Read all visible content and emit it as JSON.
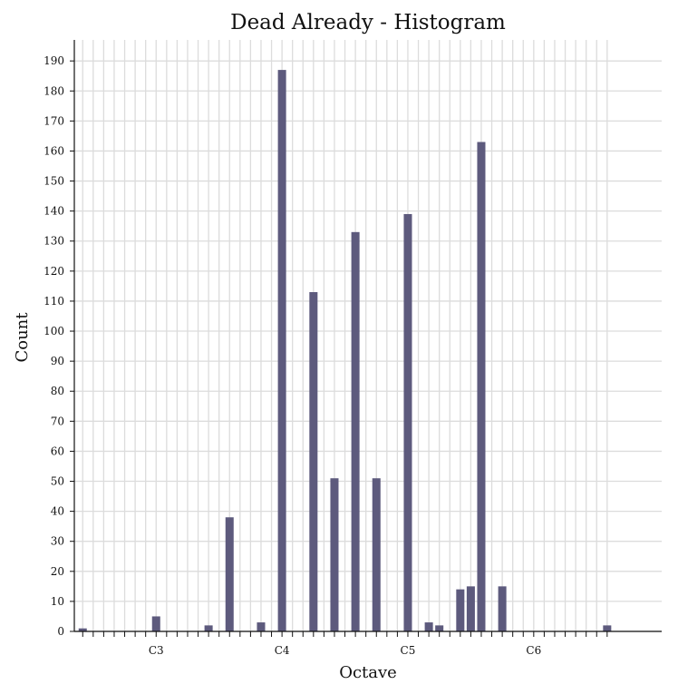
{
  "chart_data": {
    "type": "bar",
    "title": "Dead Already - Histogram",
    "xlabel": "Octave",
    "ylabel": "Count",
    "ylim": [
      0,
      197
    ],
    "yticks": [
      0,
      10,
      20,
      30,
      40,
      50,
      60,
      70,
      80,
      90,
      100,
      110,
      120,
      130,
      140,
      150,
      160,
      170,
      180,
      190
    ],
    "grid": true,
    "xlim": [
      -0.8,
      55.2
    ],
    "x_labeled_ticks": [
      {
        "label": "C3",
        "pos": 7
      },
      {
        "label": "C4",
        "pos": 19
      },
      {
        "label": "C5",
        "pos": 31
      },
      {
        "label": "C6",
        "pos": 43
      }
    ],
    "bar_color": "#5d5a7d",
    "bars": [
      {
        "pos": 0,
        "value": 1
      },
      {
        "pos": 7,
        "value": 5
      },
      {
        "pos": 12,
        "value": 2
      },
      {
        "pos": 14,
        "value": 38
      },
      {
        "pos": 17,
        "value": 3
      },
      {
        "pos": 19,
        "value": 187
      },
      {
        "pos": 22,
        "value": 113
      },
      {
        "pos": 24,
        "value": 51
      },
      {
        "pos": 26,
        "value": 133
      },
      {
        "pos": 28,
        "value": 51
      },
      {
        "pos": 31,
        "value": 139
      },
      {
        "pos": 33,
        "value": 3
      },
      {
        "pos": 34,
        "value": 2
      },
      {
        "pos": 36,
        "value": 14
      },
      {
        "pos": 37,
        "value": 15
      },
      {
        "pos": 38,
        "value": 163
      },
      {
        "pos": 40,
        "value": 15
      },
      {
        "pos": 50,
        "value": 2
      }
    ]
  }
}
